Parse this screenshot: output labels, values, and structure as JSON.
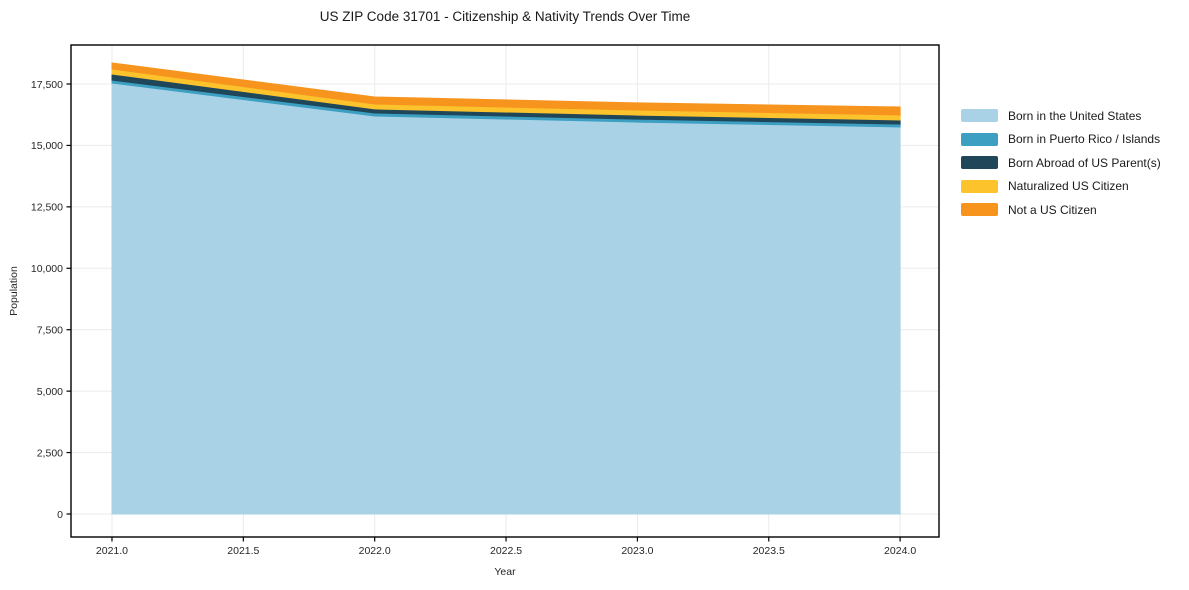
{
  "figure": {
    "title": "US ZIP Code 31701 - Citizenship & Nativity Trends Over Time",
    "background": "#ffffff"
  },
  "chart_data": {
    "type": "area",
    "stacked": true,
    "title": "US ZIP Code 31701 - Citizenship & Nativity Trends Over Time",
    "xlabel": "Year",
    "ylabel": "Population",
    "x": [
      2021,
      2022,
      2023,
      2024
    ],
    "series": [
      {
        "name": "Born in the United States",
        "color": "#A9D2E6",
        "values": [
          17540,
          16200,
          15950,
          15750
        ]
      },
      {
        "name": "Born in Puerto Rico / Islands",
        "color": "#3D9FC2",
        "values": [
          120,
          120,
          120,
          120
        ]
      },
      {
        "name": "Born Abroad of US Parent(s)",
        "color": "#1F4659",
        "values": [
          245,
          165,
          165,
          165
        ]
      },
      {
        "name": "Naturalized US Citizen",
        "color": "#FCC32D",
        "values": [
          205,
          200,
          205,
          205
        ]
      },
      {
        "name": "Not a US Citizen",
        "color": "#F6941E",
        "values": [
          245,
          285,
          290,
          325
        ]
      }
    ],
    "totals": [
      18355,
      16970,
      16730,
      16565
    ],
    "x_ticks": [
      2021.0,
      2021.5,
      2022.0,
      2022.5,
      2023.0,
      2023.5,
      2024.0
    ],
    "x_tick_labels": [
      "2021.0",
      "2021.5",
      "2022.0",
      "2022.5",
      "2023.0",
      "2023.5",
      "2024.0"
    ],
    "y_ticks": [
      0,
      2500,
      5000,
      7500,
      10000,
      12500,
      15000,
      17500
    ],
    "y_tick_labels": [
      "0",
      "2,500",
      "5,000",
      "7,500",
      "10,000",
      "12,500",
      "15,000",
      "17,500"
    ],
    "xlim": [
      2020.844,
      2024.148
    ],
    "ylim": [
      -936,
      19087
    ],
    "grid": true,
    "legend_position": "right",
    "colors": {
      "axis": "#000000",
      "grid": "#ebebeb",
      "tick_label": "#262626",
      "title": "#1a1a1a"
    }
  }
}
